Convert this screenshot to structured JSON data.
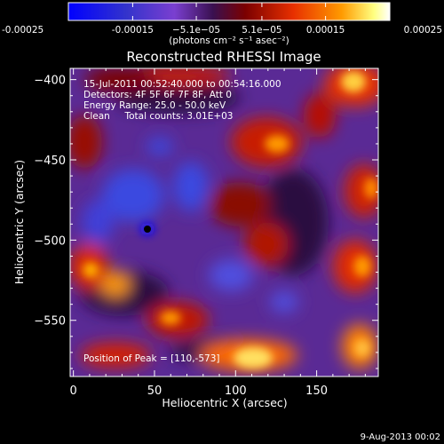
{
  "chart_data": {
    "type": "heatmap",
    "title": "Reconstructed RHESSI Image",
    "xlabel": "Heliocentric X (arcsec)",
    "ylabel": "Heliocentric Y (arcsec)",
    "xlim": [
      -2,
      188
    ],
    "ylim": [
      -585,
      -393
    ],
    "x_ticks": [
      0,
      50,
      100,
      150
    ],
    "y_ticks": [
      -400,
      -450,
      -500,
      -550
    ],
    "colorbar": {
      "range": [
        -0.00025,
        0.00025
      ],
      "ticks": [
        -0.00025,
        -0.00015,
        -5.1e-05,
        5.1e-05,
        0.00015,
        0.00025
      ],
      "tick_labels": [
        "-0.00025",
        "-0.00015",
        "−5.1e−05",
        "5.1e−05",
        "0.00015",
        "0.00025"
      ],
      "units_label": "(photons cm⁻² s⁻¹ asec⁻²)"
    },
    "annotations": [
      "15-Jul-2011 00:52:40.000 to 00:54:16.000",
      "Detectors: 4F 5F 6F 7F 8F, Att 0",
      "Energy Range: 25.0 - 50.0 keV",
      "Clean     Total counts: 3.01E+03"
    ],
    "peak_label": "Position of Peak = [110,-573]",
    "peak_position": [
      110,
      -573
    ],
    "date_stamp": "9-Aug-2013 00:02",
    "colors": {
      "background": "#000000",
      "axes": "#ffffff",
      "colormap": [
        "#0000ff",
        "#4b1a8a",
        "#8a3fd0",
        "#7b0000",
        "#e23000",
        "#ff9a00",
        "#ffff80",
        "#ffffff"
      ]
    }
  }
}
